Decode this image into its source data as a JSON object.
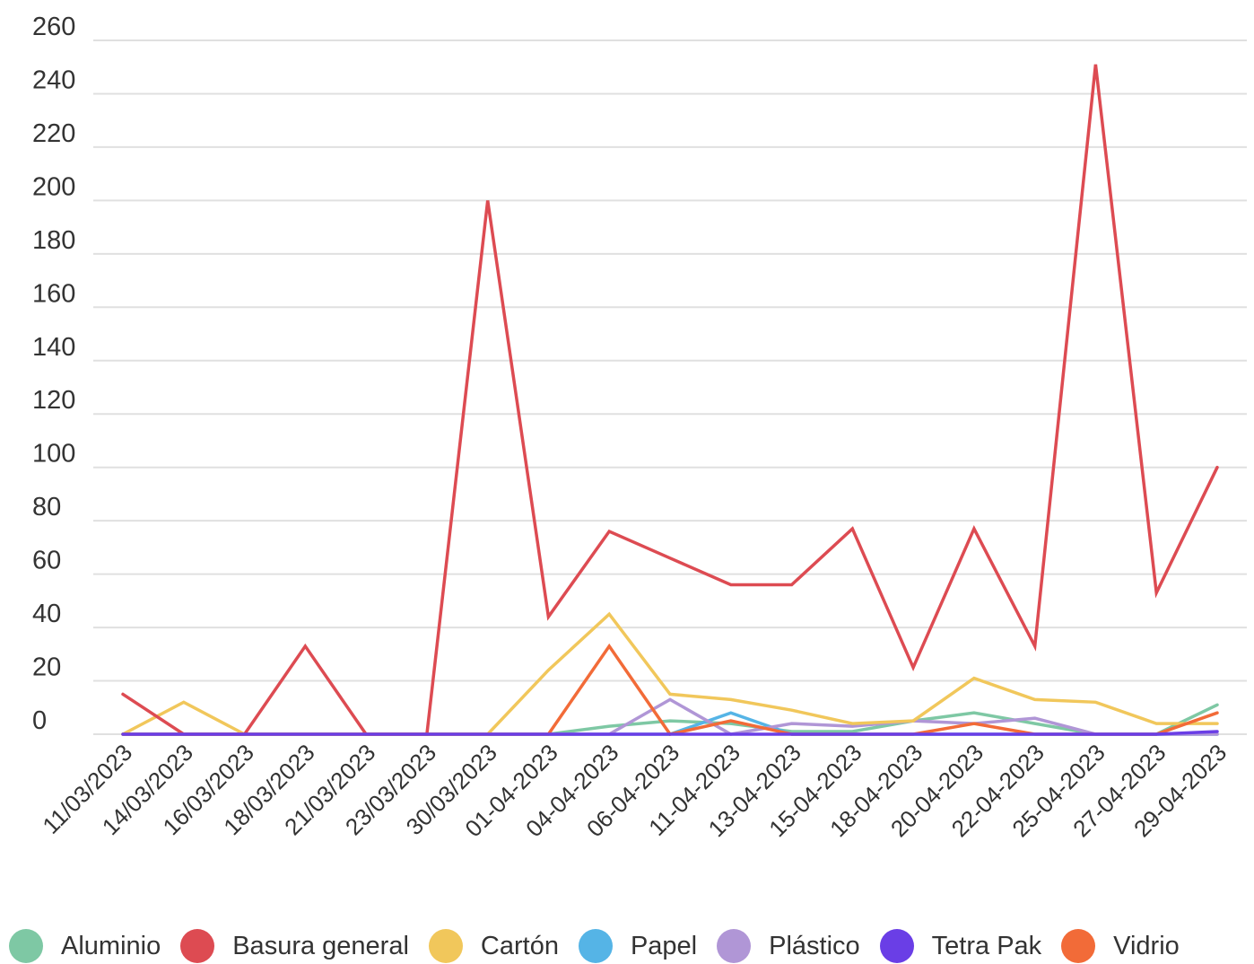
{
  "chart_data": {
    "type": "line",
    "title": "",
    "xlabel": "",
    "ylabel": "",
    "ylim": [
      0,
      260
    ],
    "yticks": [
      0,
      20,
      40,
      60,
      80,
      100,
      120,
      140,
      160,
      180,
      200,
      220,
      240,
      260
    ],
    "grid": true,
    "legend_position": "bottom",
    "categories": [
      "11/03/2023",
      "14/03/2023",
      "16/03/2023",
      "18/03/2023",
      "21/03/2023",
      "23/03/2023",
      "30/03/2023",
      "01-04-2023",
      "04-04-2023",
      "06-04-2023",
      "11-04-2023",
      "13-04-2023",
      "15-04-2023",
      "18-04-2023",
      "20-04-2023",
      "22-04-2023",
      "25-04-2023",
      "27-04-2023",
      "29-04-2023"
    ],
    "series": [
      {
        "name": "Aluminio",
        "color": "#7ec8a4",
        "values": [
          0,
          0,
          0,
          0,
          0,
          0,
          0,
          0,
          3,
          5,
          4,
          1,
          1,
          5,
          8,
          4,
          0,
          0,
          11
        ]
      },
      {
        "name": "Basura general",
        "color": "#dd4b52",
        "values": [
          15,
          0,
          0,
          33,
          0,
          0,
          200,
          44,
          76,
          66,
          56,
          56,
          77,
          25,
          77,
          33,
          251,
          53,
          100
        ]
      },
      {
        "name": "Cartón",
        "color": "#f1c75b",
        "values": [
          0,
          12,
          0,
          0,
          0,
          0,
          0,
          24,
          45,
          15,
          13,
          9,
          4,
          5,
          21,
          13,
          12,
          4,
          4
        ]
      },
      {
        "name": "Papel",
        "color": "#55b4e6",
        "values": [
          0,
          0,
          0,
          0,
          0,
          0,
          0,
          0,
          0,
          0,
          8,
          0,
          0,
          0,
          0,
          0,
          0,
          0,
          0
        ]
      },
      {
        "name": "Plástico",
        "color": "#b096d6",
        "values": [
          0,
          0,
          0,
          0,
          0,
          0,
          0,
          0,
          0,
          13,
          0,
          4,
          3,
          5,
          4,
          6,
          0,
          0,
          0
        ]
      },
      {
        "name": "Tetra Pak",
        "color": "#6a3ee6",
        "values": [
          0,
          0,
          0,
          0,
          0,
          0,
          0,
          0,
          0,
          0,
          0,
          0,
          0,
          0,
          0,
          0,
          0,
          0,
          1
        ]
      },
      {
        "name": "Vidrio",
        "color": "#f26b38",
        "values": [
          0,
          0,
          0,
          0,
          0,
          0,
          0,
          0,
          33,
          0,
          5,
          0,
          0,
          0,
          4,
          0,
          0,
          0,
          8
        ]
      }
    ]
  }
}
